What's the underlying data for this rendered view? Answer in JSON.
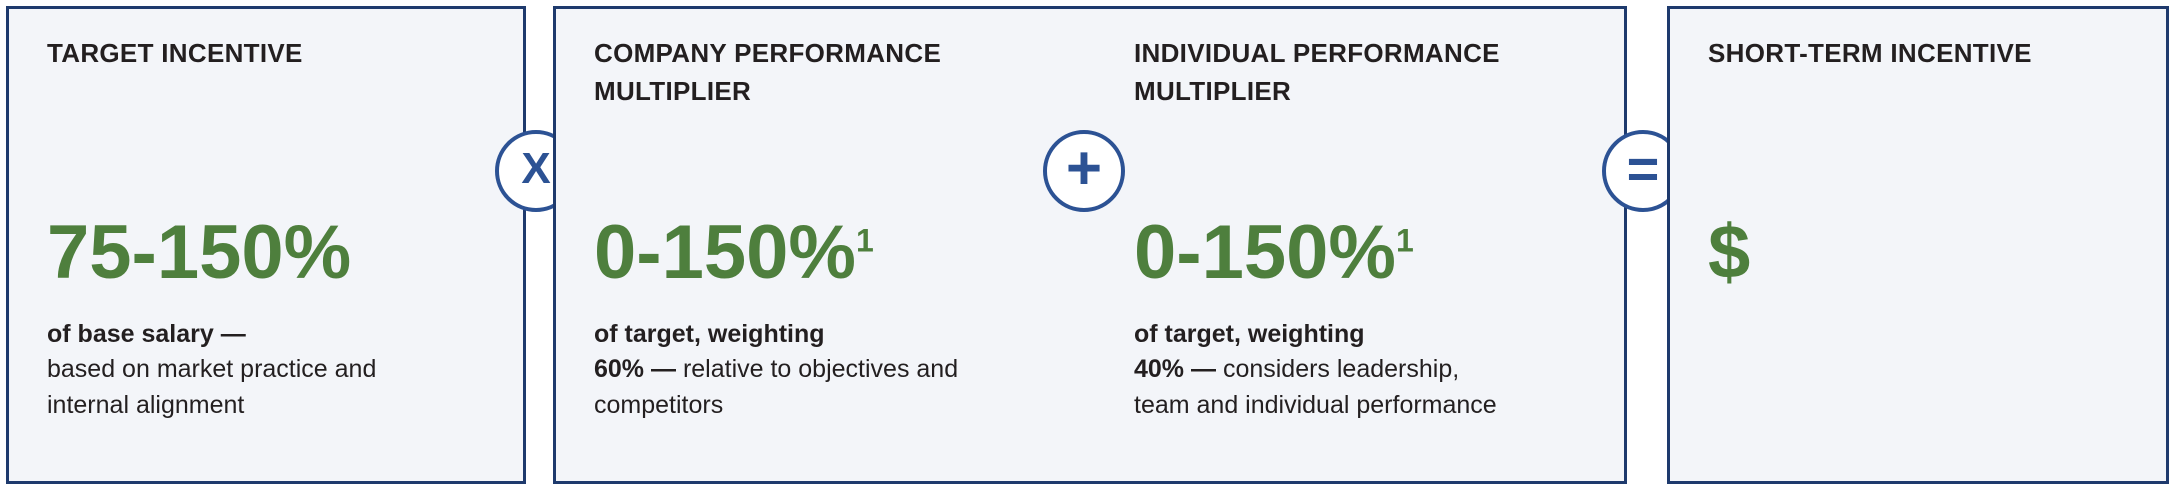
{
  "diagram": {
    "boxes": {
      "target": {
        "heading": "TARGET INCENTIVE",
        "value": "75-150%",
        "desc_bold": "of base salary —",
        "desc_rest": "based on market practice and internal alignment"
      },
      "company": {
        "heading": "COMPANY PERFORMANCE MULTIPLIER",
        "value": "0-150%",
        "footnote": "1",
        "desc_bold": "of target, weighting",
        "weight_bold": "60% —",
        "weight_rest": "relative to objectives and competitors"
      },
      "individual": {
        "heading": "INDIVIDUAL PERFORMANCE MULTIPLIER",
        "value": "0-150%",
        "footnote": "1",
        "desc_bold": "of target, weighting",
        "weight_bold": "40% —",
        "weight_rest": "considers leadership, team and individual performance"
      },
      "sti": {
        "heading": "SHORT-TERM INCENTIVE",
        "value": "$"
      }
    },
    "operators": {
      "multiply": "X",
      "plus": "+",
      "equals": "="
    }
  },
  "colors": {
    "green_value": "#4e7f3d",
    "navy_border": "#1e3a6d",
    "operator_blue": "#2c5294",
    "box_background": "#f3f5f9",
    "text": "#231f20",
    "page_background": "#ffffff"
  }
}
